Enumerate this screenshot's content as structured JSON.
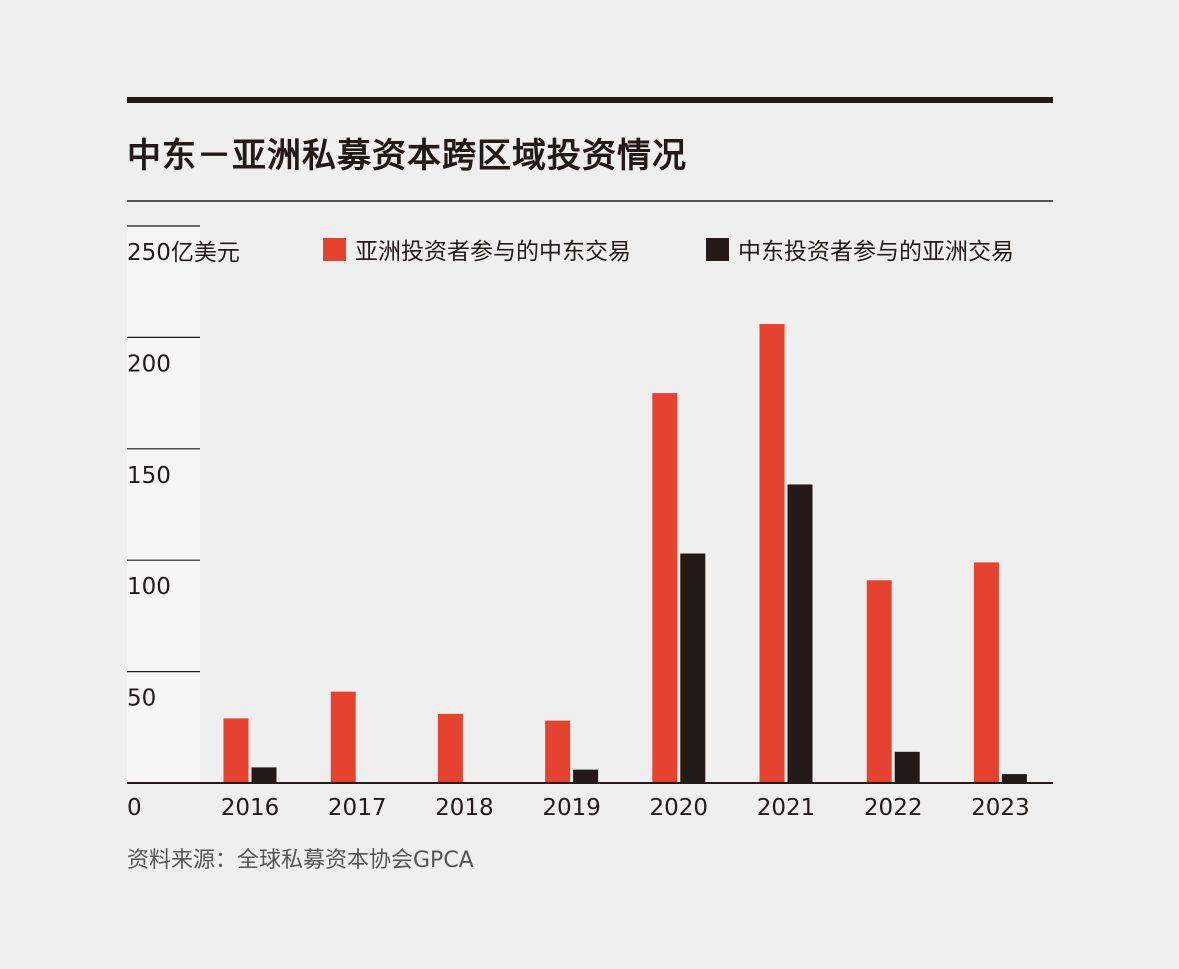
{
  "title": "中东－亚洲私募资本跨区域投资情况",
  "source": "资料来源：全球私募资本协会GPCA",
  "colors": {
    "asia_in_me": "#e5432f",
    "me_in_asia": "#231916",
    "text": "#231916",
    "gridline": "#231916",
    "background": "#efefef",
    "axis_band": "#f6f6f6"
  },
  "chart_data": {
    "type": "bar",
    "categories": [
      "2016",
      "2017",
      "2018",
      "2019",
      "2020",
      "2021",
      "2022",
      "2023"
    ],
    "series": [
      {
        "name": "亚洲投资者参与的中东交易",
        "values": [
          29,
          41,
          31,
          28,
          175,
          206,
          91,
          99
        ]
      },
      {
        "name": "中东投资者参与的亚洲交易",
        "values": [
          7,
          0,
          0,
          6,
          103,
          134,
          14,
          4
        ]
      }
    ],
    "yunit": "亿美元",
    "yticks": [
      0,
      50,
      100,
      150,
      200,
      250
    ],
    "ylim": [
      0,
      250
    ],
    "grid": true,
    "legend": "top"
  }
}
